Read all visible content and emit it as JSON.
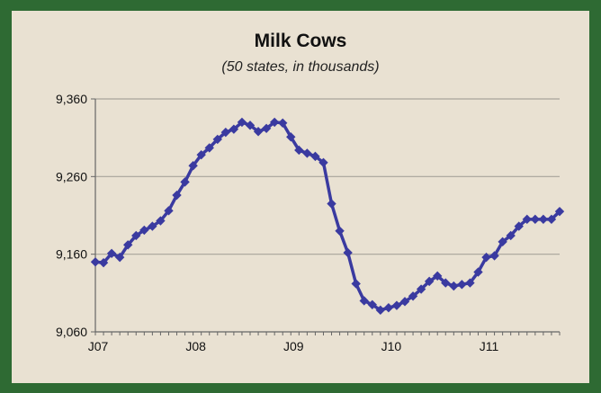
{
  "chart_data": {
    "type": "line",
    "title": "Milk Cows",
    "subtitle": "(50 states, in thousands)",
    "xlabel": "",
    "ylabel": "",
    "ylim": [
      9060,
      9360
    ],
    "yticks": [
      "9,060",
      "9,160",
      "9,260",
      "9,360"
    ],
    "ytick_values": [
      9060,
      9160,
      9260,
      9360
    ],
    "xtick_labels": [
      "J07",
      "J08",
      "J09",
      "J10",
      "J11"
    ],
    "xtick_index": [
      0,
      12,
      24,
      36,
      48
    ],
    "grid": true,
    "line_color": "#3a3aa0",
    "x": [
      "Jan 2007",
      "Feb 2007",
      "Mar 2007",
      "Apr 2007",
      "May 2007",
      "Jun 2007",
      "Jul 2007",
      "Aug 2007",
      "Sep 2007",
      "Oct 2007",
      "Nov 2007",
      "Dec 2007",
      "Jan 2008",
      "Feb 2008",
      "Mar 2008",
      "Apr 2008",
      "May 2008",
      "Jun 2008",
      "Jul 2008",
      "Aug 2008",
      "Sep 2008",
      "Oct 2008",
      "Nov 2008",
      "Dec 2008",
      "Jan 2009",
      "Feb 2009",
      "Mar 2009",
      "Apr 2009",
      "May 2009",
      "Jun 2009",
      "Jul 2009",
      "Aug 2009",
      "Sep 2009",
      "Oct 2009",
      "Nov 2009",
      "Dec 2009",
      "Jan 2010",
      "Feb 2010",
      "Mar 2010",
      "Apr 2010",
      "May 2010",
      "Jun 2010",
      "Jul 2010",
      "Aug 2010",
      "Sep 2010",
      "Oct 2010",
      "Nov 2010",
      "Dec 2010",
      "Jan 2011",
      "Feb 2011",
      "Mar 2011",
      "Apr 2011",
      "May 2011",
      "Jun 2011",
      "Jul 2011",
      "Aug 2011",
      "Sep 2011",
      "Oct 2011"
    ],
    "values": [
      9150,
      9149,
      9161,
      9156,
      9172,
      9184,
      9191,
      9196,
      9203,
      9216,
      9236,
      9253,
      9274,
      9288,
      9297,
      9308,
      9317,
      9321,
      9330,
      9326,
      9318,
      9322,
      9330,
      9329,
      9311,
      9294,
      9290,
      9286,
      9278,
      9225,
      9190,
      9162,
      9122,
      9100,
      9095,
      9088,
      9091,
      9094,
      9099,
      9106,
      9115,
      9125,
      9132,
      9123,
      9119,
      9121,
      9123,
      9137,
      9156,
      9158,
      9176,
      9184,
      9196,
      9205,
      9205,
      9205,
      9205,
      9215
    ]
  }
}
